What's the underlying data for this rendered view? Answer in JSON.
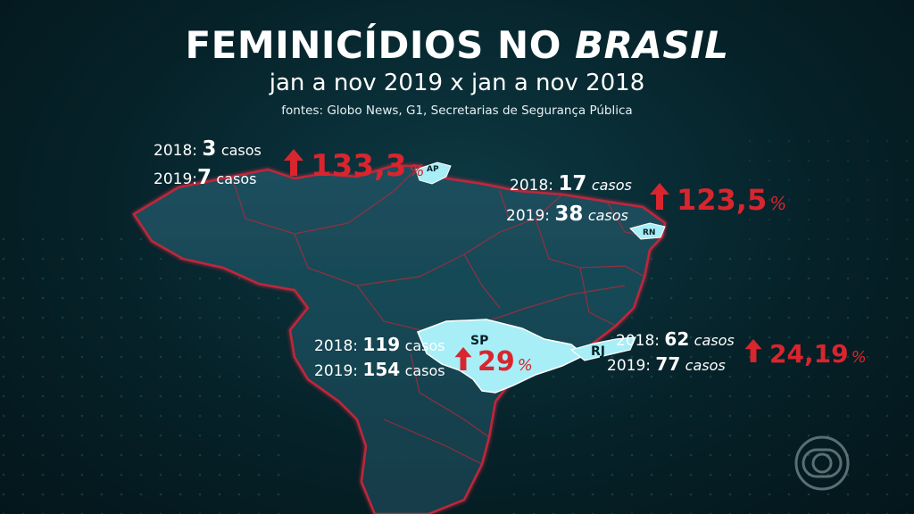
{
  "title": {
    "text": "FEMINICÍDIOS NO ",
    "emphasis": "BRASIL"
  },
  "subtitle": "jan a nov 2019 x jan a nov 2018",
  "sources": "fontes: Globo News, G1, Secretarias de Segurança Pública",
  "states": {
    "ap": {
      "code": "AP",
      "y2018_label": "2018:",
      "y2018_value": "3",
      "y2018_unit": "casos",
      "y2019_label": "2019:",
      "y2019_value": "7",
      "y2019_unit": "casos",
      "change": "133,3",
      "change_unit": "%"
    },
    "rn": {
      "code": "RN",
      "y2018_label": "2018:",
      "y2018_value": "17",
      "y2018_unit": "casos",
      "y2019_label": "2019:",
      "y2019_value": "38",
      "y2019_unit": "casos",
      "change": "123,5",
      "change_unit": "%"
    },
    "sp": {
      "code": "SP",
      "y2018_label": "2018:",
      "y2018_value": "119",
      "y2018_unit": "casos",
      "y2019_label": "2019:",
      "y2019_value": "154",
      "y2019_unit": "casos",
      "change": "29",
      "change_unit": "%"
    },
    "rj": {
      "code": "RJ",
      "y2018_label": "2018:",
      "y2018_value": "62",
      "y2018_unit": "casos",
      "y2019_label": "2019:",
      "y2019_value": "77",
      "y2019_unit": "casos",
      "change": "24,19",
      "change_unit": "%"
    }
  },
  "colors": {
    "highlight_state": "#a8eef7",
    "border_glow": "#c0273a",
    "increase": "#d9252e",
    "background": "#062229"
  },
  "icons": {
    "increase": "up-arrow-icon",
    "broadcaster": "globo-logo-icon"
  }
}
